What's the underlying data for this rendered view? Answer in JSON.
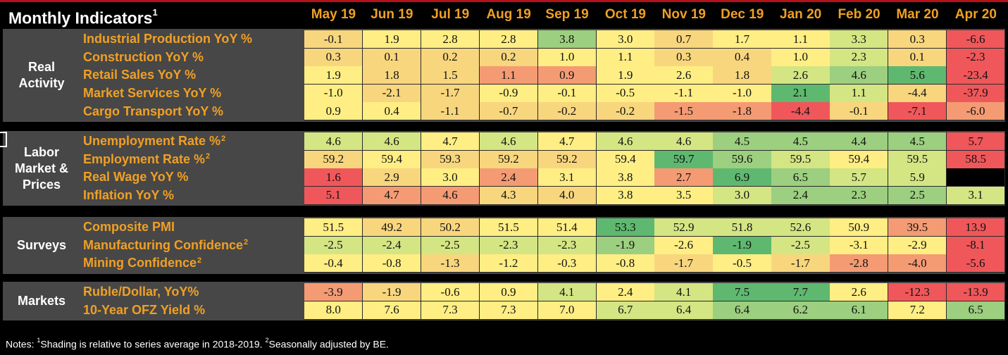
{
  "title": "Monthly Indicators",
  "title_note": "1",
  "notes": {
    "prefix": "Notes: ",
    "n1_mark": "1",
    "n1_text": "Shading is relative to series average in 2018-2019. ",
    "n2_mark": "2",
    "n2_text": "Seasonally adjusted by BE."
  },
  "colors": {
    "group_bg": "#474747",
    "header_text": "#f0a024",
    "scale": [
      "#f0575a",
      "#f49b74",
      "#f8d67e",
      "#ffee84",
      "#d4e583",
      "#9ccf7f",
      "#5fb870"
    ]
  },
  "chart_data": {
    "type": "table",
    "columns": [
      "May 19",
      "Jun 19",
      "Jul 19",
      "Aug 19",
      "Sep 19",
      "Oct 19",
      "Nov 19",
      "Dec 19",
      "Jan 20",
      "Feb 20",
      "Mar 20",
      "Apr 20"
    ],
    "groups": [
      {
        "name": "Real Activity",
        "label_lines": [
          "Real",
          "Activity"
        ],
        "rows": [
          {
            "label": "Industrial Production YoY %",
            "sup": "",
            "values": [
              "-0.1",
              "1.9",
              "2.8",
              "2.8",
              "3.8",
              "3.0",
              "0.7",
              "1.7",
              "1.1",
              "3.3",
              "0.3",
              "-6.6"
            ],
            "shades": [
              2,
              3,
              3,
              3,
              5,
              3,
              2,
              3,
              3,
              4,
              2,
              0
            ]
          },
          {
            "label": "Construction YoY %",
            "sup": "",
            "values": [
              "0.3",
              "0.1",
              "0.2",
              "0.2",
              "1.0",
              "1.1",
              "0.3",
              "0.4",
              "1.0",
              "2.3",
              "0.1",
              "-2.3"
            ],
            "shades": [
              2,
              2,
              2,
              2,
              3,
              3,
              2,
              2,
              3,
              4,
              2,
              0
            ]
          },
          {
            "label": "Retail Sales YoY %",
            "sup": "",
            "values": [
              "1.9",
              "1.8",
              "1.5",
              "1.1",
              "0.9",
              "1.9",
              "2.6",
              "1.8",
              "2.6",
              "4.6",
              "5.6",
              "-23.4"
            ],
            "shades": [
              3,
              2,
              2,
              1,
              1,
              3,
              3,
              2,
              4,
              5,
              6,
              0
            ]
          },
          {
            "label": "Market Services YoY %",
            "sup": "",
            "values": [
              "-1.0",
              "-2.1",
              "-1.7",
              "-0.9",
              "-0.1",
              "-0.5",
              "-1.1",
              "-1.0",
              "2.1",
              "1.1",
              "-4.4",
              "-37.9"
            ],
            "shades": [
              3,
              2,
              2,
              3,
              3,
              3,
              3,
              3,
              6,
              4,
              2,
              0
            ]
          },
          {
            "label": "Cargo Transport YoY %",
            "sup": "",
            "values": [
              "0.9",
              "0.4",
              "-1.1",
              "-0.7",
              "-0.2",
              "-0.2",
              "-1.5",
              "-1.8",
              "-4.4",
              "-0.1",
              "-7.1",
              "-6.0"
            ],
            "shades": [
              3,
              3,
              2,
              2,
              2,
              2,
              1,
              1,
              0,
              2,
              0,
              1
            ]
          }
        ]
      },
      {
        "name": "Labor Market & Prices",
        "label_lines": [
          "Labor",
          "Market &",
          "Prices"
        ],
        "rows": [
          {
            "label": "Unemployment Rate %",
            "sup": "2",
            "values": [
              "4.6",
              "4.6",
              "4.7",
              "4.6",
              "4.7",
              "4.6",
              "4.6",
              "4.5",
              "4.5",
              "4.4",
              "4.5",
              "5.7"
            ],
            "shades": [
              4,
              4,
              3,
              4,
              3,
              4,
              4,
              5,
              5,
              5,
              5,
              0
            ]
          },
          {
            "label": "Employment Rate %",
            "sup": "2",
            "values": [
              "59.2",
              "59.4",
              "59.3",
              "59.2",
              "59.2",
              "59.4",
              "59.7",
              "59.6",
              "59.5",
              "59.4",
              "59.5",
              "58.5"
            ],
            "shades": [
              2,
              3,
              2,
              2,
              2,
              3,
              6,
              5,
              4,
              3,
              4,
              0
            ]
          },
          {
            "label": "Real Wage YoY %",
            "sup": "",
            "values": [
              "1.6",
              "2.9",
              "3.0",
              "2.4",
              "3.1",
              "3.8",
              "2.7",
              "6.9",
              "6.5",
              "5.7",
              "5.9",
              ""
            ],
            "shades": [
              0,
              2,
              3,
              1,
              3,
              3,
              1,
              6,
              5,
              4,
              4,
              -1
            ]
          },
          {
            "label": "Inflation YoY %",
            "sup": "",
            "values": [
              "5.1",
              "4.7",
              "4.6",
              "4.3",
              "4.0",
              "3.8",
              "3.5",
              "3.0",
              "2.4",
              "2.3",
              "2.5",
              "3.1"
            ],
            "shades": [
              0,
              1,
              1,
              2,
              2,
              3,
              3,
              4,
              5,
              5,
              5,
              4
            ]
          }
        ]
      },
      {
        "name": "Surveys",
        "label_lines": [
          "Surveys"
        ],
        "rows": [
          {
            "label": "Composite PMI",
            "sup": "",
            "values": [
              "51.5",
              "49.2",
              "50.2",
              "51.5",
              "51.4",
              "53.3",
              "52.9",
              "51.8",
              "52.6",
              "50.9",
              "39.5",
              "13.9"
            ],
            "shades": [
              3,
              2,
              2,
              3,
              3,
              6,
              4,
              4,
              4,
              3,
              1,
              0
            ]
          },
          {
            "label": "Manufacturing Confidence",
            "sup": "2",
            "values": [
              "-2.5",
              "-2.4",
              "-2.5",
              "-2.3",
              "-2.3",
              "-1.9",
              "-2.6",
              "-1.9",
              "-2.5",
              "-3.1",
              "-2.9",
              "-8.1"
            ],
            "shades": [
              4,
              4,
              4,
              4,
              4,
              5,
              3,
              6,
              4,
              3,
              3,
              0
            ]
          },
          {
            "label": "Mining Confidence",
            "sup": "2",
            "values": [
              "-0.4",
              "-0.8",
              "-1.3",
              "-1.2",
              "-0.3",
              "-0.8",
              "-1.7",
              "-0.5",
              "-1.7",
              "-2.8",
              "-4.0",
              "-5.6"
            ],
            "shades": [
              3,
              3,
              2,
              3,
              3,
              3,
              2,
              3,
              2,
              1,
              1,
              0
            ]
          }
        ]
      },
      {
        "name": "Markets",
        "label_lines": [
          "Markets"
        ],
        "rows": [
          {
            "label": "Ruble/Dollar, YoY%",
            "sup": "",
            "values": [
              "-3.9",
              "-1.9",
              "-0.6",
              "0.9",
              "4.1",
              "2.4",
              "4.1",
              "7.5",
              "7.7",
              "2.6",
              "-12.3",
              "-13.9"
            ],
            "shades": [
              1,
              2,
              3,
              3,
              4,
              3,
              4,
              6,
              6,
              3,
              0,
              0
            ]
          },
          {
            "label": "10-Year OFZ Yield %",
            "sup": "",
            "values": [
              "8.0",
              "7.6",
              "7.3",
              "7.3",
              "7.0",
              "6.7",
              "6.4",
              "6.4",
              "6.2",
              "6.1",
              "7.2",
              "6.5"
            ],
            "shades": [
              3,
              3,
              3,
              3,
              3,
              4,
              4,
              5,
              5,
              5,
              3,
              5
            ]
          }
        ]
      }
    ]
  }
}
